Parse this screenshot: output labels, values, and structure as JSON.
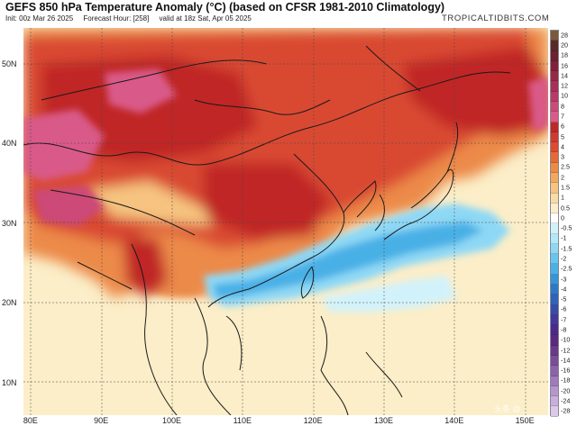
{
  "header": {
    "title": "GEFS 850 hPa Temperature Anomaly (°C) (based on CFSR 1981-2010 Climatology)",
    "init": "Init: 00z Mar 26 2025",
    "forecast_hour": "Forecast Hour: [258]",
    "valid": "valid at 18z Sat, Apr 05 2025",
    "site": "TROPICALTIDBITS.COM"
  },
  "axes": {
    "latitudes": [
      {
        "label": "50N",
        "value": 50
      },
      {
        "label": "40N",
        "value": 40
      },
      {
        "label": "30N",
        "value": 30
      },
      {
        "label": "20N",
        "value": 20
      },
      {
        "label": "10N",
        "value": 10
      }
    ],
    "longitudes": [
      {
        "label": "80E",
        "value": 80
      },
      {
        "label": "90E",
        "value": 90
      },
      {
        "label": "100E",
        "value": 100
      },
      {
        "label": "110E",
        "value": 110
      },
      {
        "label": "120E",
        "value": 120
      },
      {
        "label": "130E",
        "value": 130
      },
      {
        "label": "140E",
        "value": 140
      },
      {
        "label": "150E",
        "value": 150
      }
    ]
  },
  "colorbar": {
    "levels": [
      "28",
      "20",
      "18",
      "16",
      "14",
      "12",
      "10",
      "8",
      "7",
      "6",
      "5",
      "4",
      "3",
      "2.5",
      "2",
      "1.5",
      "1",
      "0.5",
      "0",
      "-0.5",
      "-1",
      "-1.5",
      "-2",
      "-2.5",
      "-3",
      "-4",
      "-5",
      "-6",
      "-7",
      "-8",
      "-10",
      "-12",
      "-14",
      "-16",
      "-18",
      "-20",
      "-24",
      "-28"
    ],
    "colors": [
      "#7a5a3c",
      "#5a2a2a",
      "#6e2030",
      "#82203a",
      "#962848",
      "#a83058",
      "#bb3a68",
      "#cc4a78",
      "#d95a88",
      "#c02828",
      "#d03a30",
      "#dc4c30",
      "#e56a38",
      "#ec8a48",
      "#f2a860",
      "#f6c480",
      "#f8dca8",
      "#fbeecf",
      "#ffffff",
      "#d2f2fb",
      "#b2e8f8",
      "#8ed8f5",
      "#68c6ee",
      "#4ab0e6",
      "#3694d8",
      "#2e78c8",
      "#3360b8",
      "#3a4aa6",
      "#443898",
      "#4e2a88",
      "#5a2a7e",
      "#6a3a8a",
      "#7a4c9a",
      "#8c62aa",
      "#a07abc",
      "#b696ce",
      "#caaedc",
      "#ddc8ea"
    ]
  },
  "watermark": "头条 @"
}
